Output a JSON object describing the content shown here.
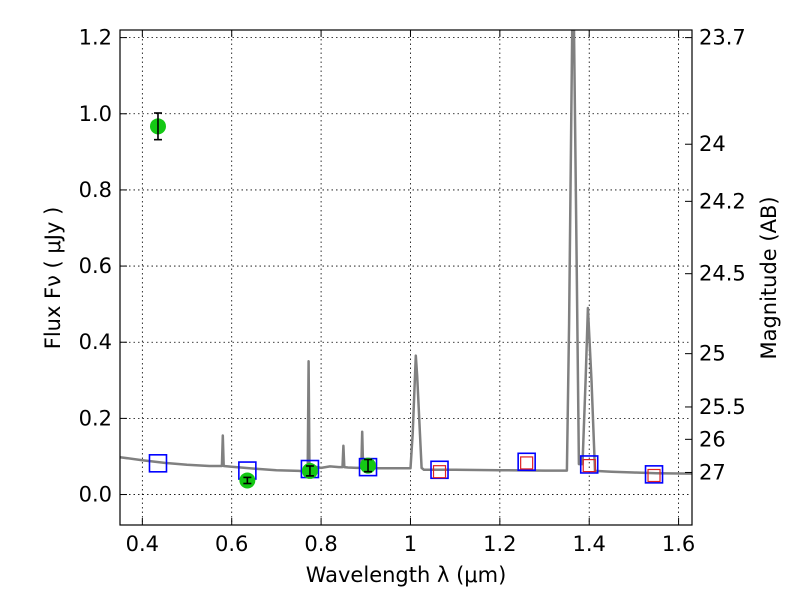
{
  "chart_data": {
    "type": "scatter",
    "xlabel": "Wavelength  λ (μm)",
    "ylabel": "Flux  Fν  ( μJy )",
    "y2label": "Magnitude (AB)",
    "xlim": [
      0.35,
      1.63
    ],
    "ylim": [
      -0.08,
      1.22
    ],
    "x_ticks": [
      0.4,
      0.6,
      0.8,
      1.0,
      1.2,
      1.4,
      1.6
    ],
    "x_tick_labels": [
      "0.4",
      "0.6",
      "0.8",
      "1",
      "1.2",
      "1.4",
      "1.6"
    ],
    "y_ticks": [
      0.0,
      0.2,
      0.4,
      0.6,
      0.8,
      1.0,
      1.2
    ],
    "y_tick_labels": [
      "0.0",
      "0.2",
      "0.4",
      "0.6",
      "0.8",
      "1.0",
      "1.2"
    ],
    "y2_ticks": [
      {
        "label": "23.7",
        "flux": 1.2
      },
      {
        "label": "24",
        "flux": 0.92
      },
      {
        "label": "24.2",
        "flux": 0.77
      },
      {
        "label": "24.5",
        "flux": 0.58
      },
      {
        "label": "25",
        "flux": 0.37
      },
      {
        "label": "25.5",
        "flux": 0.23
      },
      {
        "label": "26",
        "flux": 0.145
      },
      {
        "label": "27",
        "flux": 0.058
      }
    ],
    "grid": true,
    "grid_style": "dotted",
    "observed_points": [
      {
        "x": 0.435,
        "y": 0.967,
        "yerr": 0.035
      },
      {
        "x": 0.635,
        "y": 0.037,
        "yerr": 0.008
      },
      {
        "x": 0.775,
        "y": 0.062,
        "yerr": 0.013
      },
      {
        "x": 0.905,
        "y": 0.076,
        "yerr": 0.016
      }
    ],
    "model_photometry_blue": [
      {
        "x": 0.435,
        "y": 0.082
      },
      {
        "x": 0.635,
        "y": 0.063
      },
      {
        "x": 0.775,
        "y": 0.067
      },
      {
        "x": 0.905,
        "y": 0.072
      },
      {
        "x": 1.065,
        "y": 0.065
      },
      {
        "x": 1.26,
        "y": 0.086
      },
      {
        "x": 1.4,
        "y": 0.079
      },
      {
        "x": 1.545,
        "y": 0.053
      }
    ],
    "model_photometry_red": [
      {
        "x": 1.065,
        "y": 0.06
      },
      {
        "x": 1.26,
        "y": 0.083
      },
      {
        "x": 1.4,
        "y": 0.076
      },
      {
        "x": 1.545,
        "y": 0.05
      }
    ],
    "model_spectrum": {
      "x": [
        0.35,
        0.4,
        0.45,
        0.5,
        0.55,
        0.578,
        0.58,
        0.582,
        0.6,
        0.65,
        0.7,
        0.75,
        0.77,
        0.772,
        0.774,
        0.776,
        0.778,
        0.8,
        0.82,
        0.84,
        0.848,
        0.85,
        0.852,
        0.86,
        0.88,
        0.89,
        0.892,
        0.894,
        0.9,
        0.95,
        1.0,
        1.005,
        1.012,
        1.015,
        1.025,
        1.03,
        1.1,
        1.2,
        1.3,
        1.35,
        1.355,
        1.362,
        1.366,
        1.372,
        1.377,
        1.385,
        1.392,
        1.397,
        1.405,
        1.413,
        1.45,
        1.5,
        1.55,
        1.63
      ],
      "y": [
        0.098,
        0.09,
        0.083,
        0.078,
        0.075,
        0.075,
        0.155,
        0.075,
        0.073,
        0.068,
        0.064,
        0.062,
        0.06,
        0.35,
        0.06,
        0.06,
        0.075,
        0.07,
        0.074,
        0.072,
        0.072,
        0.128,
        0.072,
        0.071,
        0.07,
        0.07,
        0.165,
        0.07,
        0.069,
        0.069,
        0.069,
        0.16,
        0.365,
        0.31,
        0.07,
        0.065,
        0.065,
        0.064,
        0.063,
        0.063,
        0.45,
        1.22,
        1.22,
        0.6,
        0.08,
        0.08,
        0.3,
        0.49,
        0.3,
        0.062,
        0.06,
        0.058,
        0.056,
        0.055
      ]
    },
    "colors": {
      "spectrum": "#808080",
      "observed": "#14c814",
      "model_blue": "#0000ff",
      "model_red": "#e02020",
      "errorbar": "#000000",
      "grid": "#000000"
    }
  }
}
